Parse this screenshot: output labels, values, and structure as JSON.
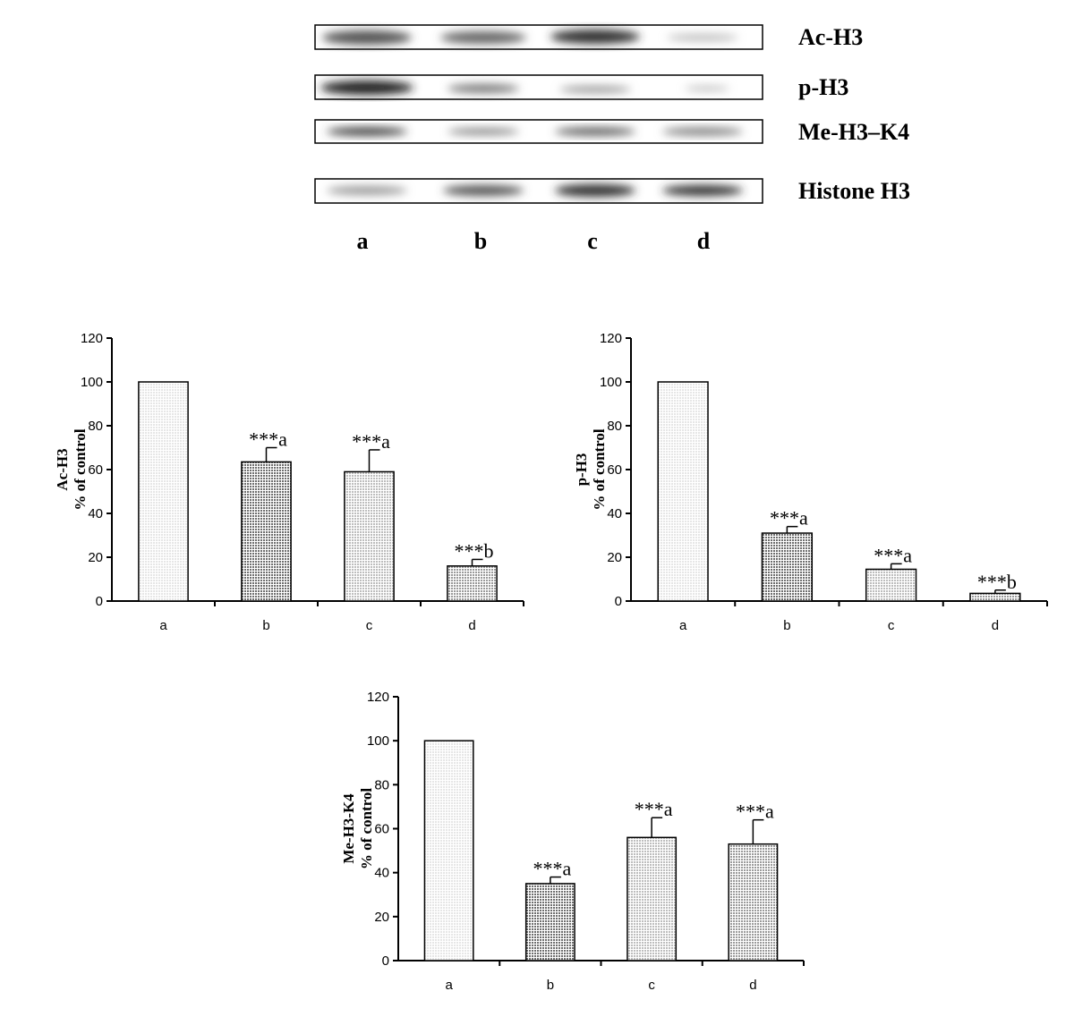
{
  "blot": {
    "rows": [
      "Ac-H3",
      "p-H3",
      "Me-H3–K4",
      "Histone H3"
    ],
    "lanes": [
      "a",
      "b",
      "c",
      "d"
    ]
  },
  "chart_data": [
    {
      "type": "bar",
      "ylabel": [
        "Ac-H3",
        "%  of control"
      ],
      "categories": [
        "a",
        "b",
        "c",
        "d"
      ],
      "values": [
        100,
        63.5,
        59,
        16
      ],
      "errors": [
        null,
        6.5,
        10,
        3
      ],
      "annotations": [
        null,
        "***a",
        "***a",
        "***b"
      ],
      "colors": [
        "#e6e6e6",
        "#6e6e6e",
        "#bdbdbd",
        "#9a9a9a"
      ],
      "ylim": [
        0,
        120
      ],
      "yticks": [
        0,
        20,
        40,
        60,
        80,
        100,
        120
      ]
    },
    {
      "type": "bar",
      "ylabel": [
        "p-H3",
        "%  of control"
      ],
      "categories": [
        "a",
        "b",
        "c",
        "d"
      ],
      "values": [
        100,
        31,
        14.5,
        3.5
      ],
      "errors": [
        null,
        3,
        2.5,
        1.5
      ],
      "annotations": [
        null,
        "***a",
        "***a",
        "***b"
      ],
      "colors": [
        "#e6e6e6",
        "#6e6e6e",
        "#bdbdbd",
        "#9a9a9a"
      ],
      "ylim": [
        0,
        120
      ],
      "yticks": [
        0,
        20,
        40,
        60,
        80,
        100,
        120
      ]
    },
    {
      "type": "bar",
      "ylabel": [
        "Me-H3-K4",
        "%  of control"
      ],
      "categories": [
        "a",
        "b",
        "c",
        "d"
      ],
      "values": [
        100,
        35,
        56,
        53
      ],
      "errors": [
        null,
        3,
        9,
        11
      ],
      "annotations": [
        null,
        "***a",
        "***a",
        "***a"
      ],
      "colors": [
        "#e6e6e6",
        "#6e6e6e",
        "#bdbdbd",
        "#9a9a9a"
      ],
      "ylim": [
        0,
        120
      ],
      "yticks": [
        0,
        20,
        40,
        60,
        80,
        100,
        120
      ]
    }
  ]
}
